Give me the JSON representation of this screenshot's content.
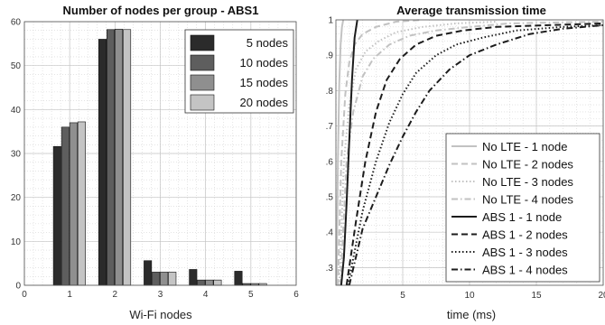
{
  "chart_data": [
    {
      "type": "bar",
      "title": "Number of nodes per group - ABS1",
      "xlabel": "Wi-Fi nodes",
      "ylabel": "",
      "categories": [
        1,
        2,
        3,
        4,
        5
      ],
      "xlim": [
        0,
        6
      ],
      "ylim": [
        0,
        60
      ],
      "xticks": [
        0,
        1,
        2,
        3,
        4,
        5,
        6
      ],
      "yticks": [
        0,
        10,
        20,
        30,
        40,
        50,
        60
      ],
      "grid": true,
      "legend_position": "top-right",
      "series": [
        {
          "name": "5 nodes",
          "color": "#2b2b2b",
          "values": [
            31.6,
            56.0,
            5.6,
            3.6,
            3.2
          ]
        },
        {
          "name": "10 nodes",
          "color": "#5e5e5e",
          "values": [
            36.0,
            58.2,
            3.0,
            1.2,
            0.4
          ]
        },
        {
          "name": "15 nodes",
          "color": "#8f8f8f",
          "values": [
            37.0,
            58.3,
            3.0,
            1.2,
            0.4
          ]
        },
        {
          "name": "20 nodes",
          "color": "#c4c4c4",
          "values": [
            37.2,
            58.2,
            3.0,
            1.2,
            0.4
          ]
        }
      ]
    },
    {
      "type": "line",
      "title": "Average transmission time",
      "xlabel": "time (ms)",
      "ylabel": "",
      "xlim": [
        0,
        20
      ],
      "ylim": [
        0.25,
        1.0
      ],
      "xticks": [
        5,
        10,
        15,
        20
      ],
      "yticks": [
        0.3,
        0.4,
        0.5,
        0.6,
        0.7,
        0.8,
        0.9,
        1.0
      ],
      "xtick_labels": [
        "5",
        "10",
        "15",
        "20"
      ],
      "ytick_labels": [
        ".3",
        ".4",
        ".5",
        ".6",
        ".7",
        ".8",
        ".9",
        "1"
      ],
      "grid": true,
      "legend_position": "bottom-right",
      "series": [
        {
          "name": "No LTE - 1 node",
          "color": "#c2c2c2",
          "style": "solid",
          "x": [
            0.05,
            0.15,
            0.25,
            0.35,
            0.45,
            0.55
          ],
          "y": [
            0.25,
            0.6,
            0.82,
            0.93,
            0.98,
            1.0
          ]
        },
        {
          "name": "No LTE - 2 nodes",
          "color": "#c2c2c2",
          "style": "dashed",
          "x": [
            0.15,
            0.4,
            0.7,
            1.0,
            1.4,
            2.0,
            3.0,
            4.5,
            6.5
          ],
          "y": [
            0.25,
            0.6,
            0.79,
            0.88,
            0.93,
            0.96,
            0.98,
            0.995,
            1.0
          ]
        },
        {
          "name": "No LTE - 3 nodes",
          "color": "#c2c2c2",
          "style": "dotted",
          "x": [
            0.25,
            0.6,
            1.0,
            1.5,
            2.2,
            3.2,
            4.5,
            6.5,
            9.0,
            12.0
          ],
          "y": [
            0.25,
            0.6,
            0.76,
            0.86,
            0.91,
            0.94,
            0.965,
            0.98,
            0.99,
            0.995
          ]
        },
        {
          "name": "No LTE - 4 nodes",
          "color": "#c2c2c2",
          "style": "dashdot",
          "x": [
            0.35,
            0.8,
            1.3,
            2.0,
            2.8,
            4.0,
            5.5,
            7.5,
            10.0,
            13.0,
            20.0
          ],
          "y": [
            0.25,
            0.6,
            0.74,
            0.84,
            0.89,
            0.93,
            0.955,
            0.97,
            0.98,
            0.99,
            0.995
          ]
        },
        {
          "name": "ABS 1 - 1 node",
          "color": "#1c1c1c",
          "style": "solid",
          "x": [
            0.4,
            0.6,
            0.8,
            1.0,
            1.2,
            1.4,
            1.6
          ],
          "y": [
            0.25,
            0.33,
            0.48,
            0.66,
            0.83,
            0.95,
            1.0
          ]
        },
        {
          "name": "ABS 1 - 2 nodes",
          "color": "#1c1c1c",
          "style": "dashed",
          "x": [
            0.8,
            1.5,
            2.2,
            3.0,
            3.8,
            4.8,
            6.0,
            7.5,
            9.5,
            12.0,
            20.0
          ],
          "y": [
            0.25,
            0.43,
            0.6,
            0.74,
            0.83,
            0.89,
            0.93,
            0.955,
            0.97,
            0.98,
            0.99
          ]
        },
        {
          "name": "ABS 1 - 3 nodes",
          "color": "#1c1c1c",
          "style": "dotted",
          "x": [
            0.9,
            2.0,
            3.0,
            4.0,
            5.0,
            6.0,
            7.5,
            9.0,
            11.0,
            13.5,
            17.0,
            20.0
          ],
          "y": [
            0.25,
            0.46,
            0.6,
            0.71,
            0.79,
            0.85,
            0.9,
            0.93,
            0.95,
            0.97,
            0.98,
            0.985
          ]
        },
        {
          "name": "ABS 1 - 4 nodes",
          "color": "#1c1c1c",
          "style": "dashdot",
          "x": [
            1.0,
            2.0,
            3.0,
            4.0,
            5.0,
            6.0,
            7.0,
            8.5,
            10.0,
            12.0,
            14.5,
            17.0,
            20.0
          ],
          "y": [
            0.25,
            0.41,
            0.5,
            0.59,
            0.67,
            0.74,
            0.8,
            0.86,
            0.9,
            0.93,
            0.96,
            0.975,
            0.985
          ]
        }
      ]
    }
  ]
}
